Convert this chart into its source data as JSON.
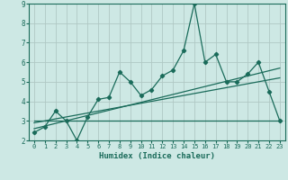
{
  "xlabel": "Humidex (Indice chaleur)",
  "xlim": [
    -0.5,
    23.5
  ],
  "ylim": [
    2,
    9
  ],
  "xticks": [
    0,
    1,
    2,
    3,
    4,
    5,
    6,
    7,
    8,
    9,
    10,
    11,
    12,
    13,
    14,
    15,
    16,
    17,
    18,
    19,
    20,
    21,
    22,
    23
  ],
  "yticks": [
    2,
    3,
    4,
    5,
    6,
    7,
    8,
    9
  ],
  "background_color": "#cde8e4",
  "grid_color": "#b0c8c4",
  "line_color": "#1a6b5a",
  "main_x": [
    0,
    1,
    2,
    3,
    4,
    5,
    6,
    7,
    8,
    9,
    10,
    11,
    12,
    13,
    14,
    15,
    16,
    17,
    18,
    19,
    20,
    21,
    22,
    23
  ],
  "main_y": [
    2.4,
    2.7,
    3.5,
    3.0,
    2.0,
    3.2,
    4.1,
    4.2,
    5.5,
    5.0,
    4.3,
    4.6,
    5.3,
    5.6,
    6.6,
    9.0,
    6.0,
    6.4,
    5.0,
    5.0,
    5.4,
    6.0,
    4.5,
    3.0
  ],
  "trend1_x": [
    0,
    23
  ],
  "trend1_y": [
    3.0,
    3.0
  ],
  "trend2_x": [
    0,
    23
  ],
  "trend2_y": [
    2.9,
    5.2
  ],
  "trend3_x": [
    0,
    23
  ],
  "trend3_y": [
    2.6,
    5.7
  ]
}
